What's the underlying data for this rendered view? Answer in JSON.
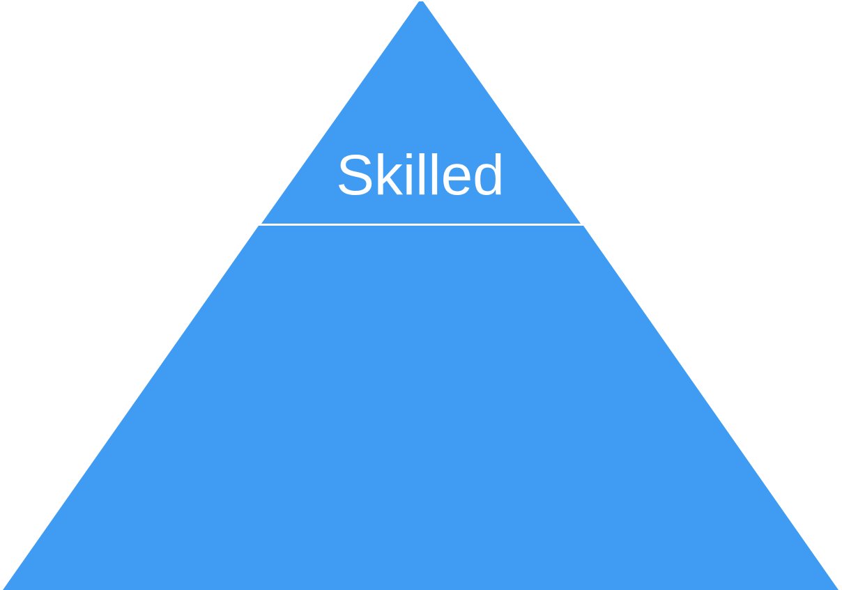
{
  "diagram": {
    "type": "pyramid",
    "colors": {
      "fill": "#409cf2",
      "separator": "#ffffff",
      "text": "#ffffff",
      "background": "#ffffff"
    },
    "tiers": [
      {
        "label": "Skilled"
      },
      {
        "label": ""
      }
    ]
  }
}
